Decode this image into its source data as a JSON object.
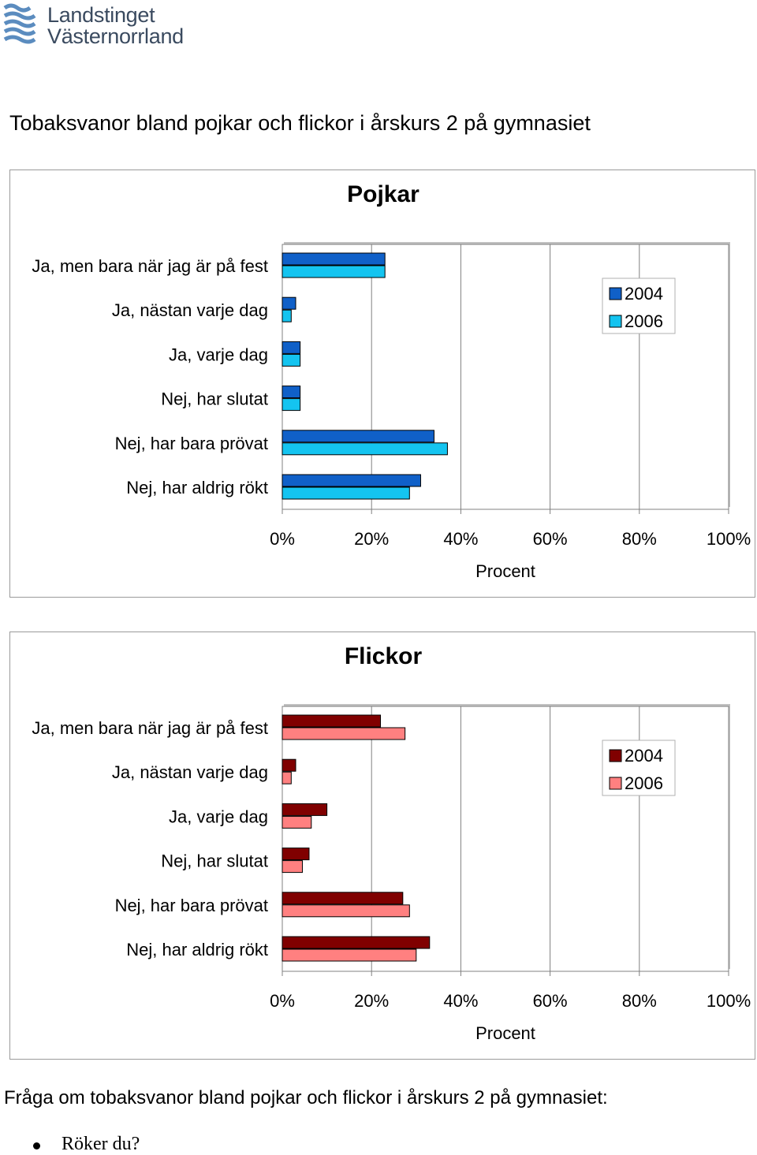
{
  "header": {
    "logo_line1": "Landstinget",
    "logo_line2": "Västernorrland"
  },
  "page_title": "Tobaksvanor bland pojkar och flickor i årskurs 2 på gymnasiet",
  "colors": {
    "pojkar_2004": "#1060c8",
    "pojkar_2006": "#14c4f0",
    "flickor_2004": "#800000",
    "flickor_2006": "#ff8080",
    "logo_blue": "#5b8cbf"
  },
  "chart_data": [
    {
      "type": "bar",
      "orientation": "horizontal",
      "title": "Pojkar",
      "xlabel": "Procent",
      "ylabel": "",
      "xlim": [
        0,
        100
      ],
      "xticks": [
        "0%",
        "20%",
        "40%",
        "60%",
        "80%",
        "100%"
      ],
      "categories": [
        "Ja, men bara när jag är på fest",
        "Ja, nästan varje dag",
        "Ja, varje dag",
        "Nej, har slutat",
        "Nej, har bara prövat",
        "Nej, har aldrig rökt"
      ],
      "series": [
        {
          "name": "2004",
          "values": [
            23,
            3,
            4,
            4,
            34,
            31
          ]
        },
        {
          "name": "2006",
          "values": [
            23,
            2,
            4,
            4,
            37,
            28.5
          ]
        }
      ],
      "grid": true,
      "legend": "top-right"
    },
    {
      "type": "bar",
      "orientation": "horizontal",
      "title": "Flickor",
      "xlabel": "Procent",
      "ylabel": "",
      "xlim": [
        0,
        100
      ],
      "xticks": [
        "0%",
        "20%",
        "40%",
        "60%",
        "80%",
        "100%"
      ],
      "categories": [
        "Ja, men bara när jag är på fest",
        "Ja, nästan varje dag",
        "Ja, varje dag",
        "Nej, har slutat",
        "Nej, har bara prövat",
        "Nej, har aldrig rökt"
      ],
      "series": [
        {
          "name": "2004",
          "values": [
            22,
            3,
            10,
            6,
            27,
            33
          ]
        },
        {
          "name": "2006",
          "values": [
            27.5,
            2,
            6.5,
            4.5,
            28.5,
            30
          ]
        }
      ],
      "grid": true,
      "legend": "top-right"
    }
  ],
  "footer": {
    "question": "Fråga om tobaksvanor bland pojkar och flickor i årskurs 2 på gymnasiet:",
    "bullet_item": "Röker du?"
  }
}
